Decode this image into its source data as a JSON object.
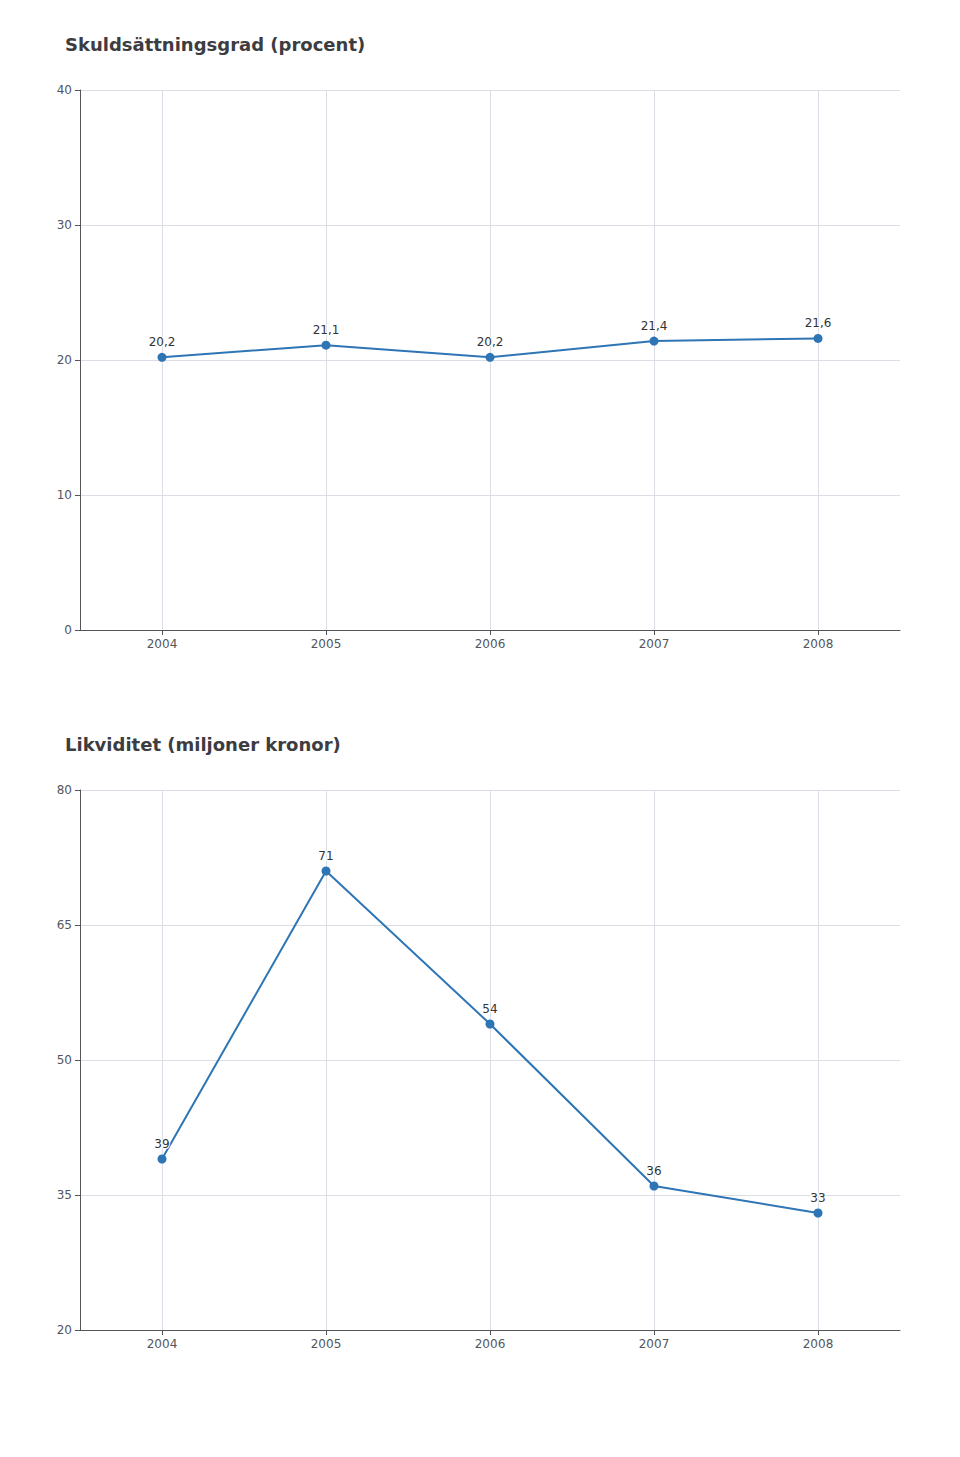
{
  "chart_data": [
    {
      "type": "line",
      "title": "Skuldsättningsgrad (procent)",
      "x": [
        2004,
        2005,
        2006,
        2007,
        2008
      ],
      "values": [
        20.2,
        21.1,
        20.2,
        21.4,
        21.6
      ],
      "value_labels": [
        "20,2",
        "21,1",
        "20,2",
        "21,4",
        "21,6"
      ],
      "data_labels": true,
      "color": "#2e75b6",
      "xlim": [
        2003.5,
        2008.5
      ],
      "xticks": [
        2004,
        2005,
        2006,
        2007,
        2008
      ],
      "ylim": [
        0,
        40
      ],
      "yticks": [
        0,
        10,
        20,
        30,
        40
      ],
      "grid": true
    },
    {
      "type": "line",
      "title": "Likviditet (miljoner kronor)",
      "x": [
        2004,
        2005,
        2006,
        2007,
        2008
      ],
      "values": [
        39,
        71,
        54,
        36,
        33
      ],
      "data_labels": true,
      "color": "#2e75b6",
      "xlim": [
        2003.5,
        2008.5
      ],
      "xticks": [
        2004,
        2005,
        2006,
        2007,
        2008
      ],
      "ylim": [
        20,
        80
      ],
      "yticks": [
        20,
        35,
        50,
        65,
        80
      ],
      "grid": true
    }
  ]
}
